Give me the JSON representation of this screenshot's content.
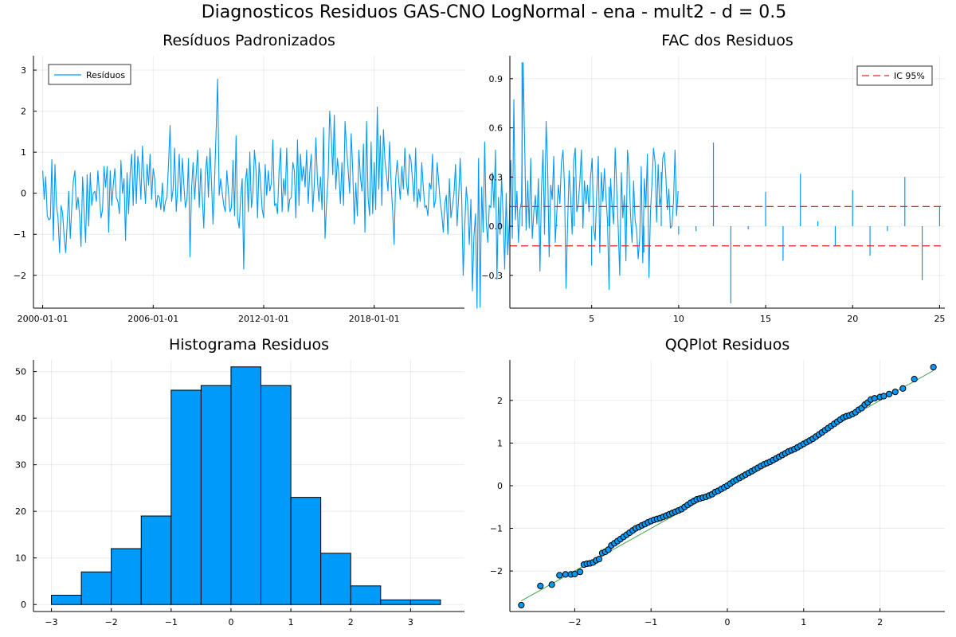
{
  "figure_title": "Diagnosticos Residuos  GAS-CNO LogNormal - ena - mult2 - d = 0.5",
  "colors": {
    "series": "#009AFA",
    "ci": "#E6261F",
    "qqline": "#3DA44D",
    "axis": "#000000"
  },
  "chart_data": [
    {
      "type": "line",
      "title": "Resíduos Padronizados",
      "x_tick_labels": [
        "2000-01-01",
        "2006-01-01",
        "2012-01-01",
        "2018-01-01"
      ],
      "x_tick_years": [
        2000,
        2006,
        2012,
        2018
      ],
      "x_range": [
        1999.5,
        2022.9
      ],
      "ylim": [
        -2.8,
        3.35
      ],
      "y_ticks": [
        -2,
        -1,
        0,
        1,
        2,
        3
      ],
      "legend": {
        "position": "top-left",
        "entries": [
          "Resíduos"
        ]
      },
      "grid": true,
      "series": [
        {
          "name": "Resíduos",
          "x_start": 2000.0,
          "x_step": 0.08333,
          "values": [
            0.55,
            -0.15,
            0.4,
            -0.55,
            -0.65,
            -0.62,
            0.82,
            -1.15,
            0.7,
            -0.3,
            -0.6,
            -1.45,
            -0.3,
            -0.5,
            -1.05,
            -1.45,
            -0.7,
            0.05,
            -1.1,
            -0.3,
            0.3,
            0.55,
            -0.4,
            -0.1,
            -0.5,
            -1.3,
            0.4,
            -0.45,
            -1.2,
            0.45,
            -0.8,
            0.5,
            -0.3,
            0.0,
            0.05,
            -0.2,
            0.55,
            -0.05,
            -0.6,
            -0.4,
            0.65,
            0.15,
            0.65,
            -0.95,
            0.55,
            -0.3,
            0.2,
            0.6,
            -0.1,
            -0.2,
            -0.5,
            0.8,
            0.0,
            0.35,
            -1.15,
            0.5,
            -0.5,
            0.5,
            0.95,
            -0.3,
            1.05,
            -0.25,
            0.9,
            0.6,
            -0.15,
            1.15,
            0.35,
            -0.25,
            0.7,
            0.2,
            0.95,
            -0.15,
            0.6,
            0.35,
            -0.35,
            -0.05,
            -0.1,
            -0.4,
            0.25,
            -0.45,
            -0.2,
            -0.1,
            0.7,
            1.65,
            -0.2,
            0.1,
            1.1,
            -0.45,
            0.15,
            0.95,
            -0.2,
            0.85,
            0.2,
            -0.35,
            -0.15,
            0.85,
            -1.55,
            0.1,
            0.75,
            -0.15,
            0.45,
            1.05,
            -0.35,
            0.6,
            -0.1,
            -0.85,
            0.5,
            0.9,
            -0.1,
            1.1,
            0.25,
            -0.75,
            0.3,
            1.55,
            2.78,
            -0.05,
            0.35,
            0.0,
            -0.3,
            -0.45,
            0.55,
            0.05,
            -0.45,
            -0.35,
            0.8,
            -0.55,
            1.4,
            -0.6,
            -0.85,
            -0.1,
            0.35,
            -1.85,
            0.25,
            0.6,
            -0.45,
            1.0,
            -0.35,
            0.0,
            1.05,
            0.55,
            -0.6,
            0.75,
            0.25,
            -0.4,
            -0.6,
            0.7,
            -0.05,
            0.55,
            0.05,
            0.25,
            1.3,
            -0.3,
            -0.25,
            -0.5,
            0.55,
            1.1,
            -0.45,
            0.35,
            -0.05,
            1.1,
            -0.45,
            -0.15,
            -0.1,
            0.75,
            0.55,
            -0.6,
            1.3,
            -0.3,
            0.95,
            0.3,
            0.65,
            0.15,
            1.05,
            -0.25,
            0.5,
            0.95,
            -0.45,
            0.25,
            1.35,
            0.35,
            -0.2,
            0.4,
            -0.4,
            1.6,
            -1.1,
            -0.2,
            0.4,
            2.0,
            1.4,
            0.45,
            1.9,
            0.1,
            0.85,
            0.45,
            -0.25,
            0.75,
            -0.3,
            1.75,
            1.1,
            0.6,
            0.0,
            1.45,
            0.6,
            -0.75,
            0.25,
            -0.55,
            1.05,
            0.4,
            0.05,
            1.2,
            -0.95,
            1.75,
            -0.1,
            -0.55,
            1.25,
            -0.5,
            0.75,
            -0.4,
            2.1,
            0.1,
            1.4,
            -0.3,
            1.55,
            0.8,
            0.45,
            0.05,
            1.25,
            0.25,
            -0.4,
            -1.25,
            0.35,
            0.8,
            0.3,
            -0.15,
            0.65,
            0.1,
            1.1,
            0.25,
            -0.05,
            0.95,
            0.8,
            0.3,
            -0.2,
            1.1,
            -0.35,
            0.1,
            -0.2,
            0.75,
            0.15,
            -0.35,
            -0.3,
            -0.55,
            0.25,
            0.1,
            0.95,
            -0.35,
            -0.15,
            0.75,
            0.3,
            -0.2,
            -0.5,
            -0.95,
            -0.25,
            -0.05,
            -1.0,
            0.35,
            -0.6,
            -0.3,
            0.0,
            0.7,
            -0.8,
            -0.1,
            0.85,
            -0.05,
            -2.0,
            -0.8,
            0.15,
            -0.3,
            -1.25,
            -0.15,
            -2.38,
            -1.05,
            -0.5,
            -2.8,
            0.85,
            -2.78,
            0.15,
            -0.95,
            1.25,
            -0.7,
            -1.2,
            -0.3,
            -0.35,
            0.5,
            -0.35,
            1.05,
            -2.1,
            -0.1,
            -1.0,
            0.4,
            -0.55,
            -1.85,
            0.0,
            -1.5,
            -0.75,
            0.8,
            -1.1,
            2.28,
            -0.65,
            0.05,
            -1.2,
            -0.4,
            -0.2,
            3.18,
            1.3,
            -0.9,
            0.3,
            -0.85,
            0.85,
            -1.1,
            -0.45,
            -0.05,
            -0.75,
            0.35,
            -1.9,
            0.1,
            1.05,
            -1.0,
            1.75,
            0.65,
            -1.55,
            0.2,
            -0.15,
            0.9,
            -1.2,
            -0.45,
            0.2,
            -0.25,
            0.75,
            1.05,
            0.15,
            -2.32,
            -0.8,
            0.55,
            -0.1,
            -1.0,
            0.8,
            1.1,
            -0.45,
            -0.25,
            0.3,
            1.05,
            -0.85,
            0.3,
            -0.25,
            0.2,
            -0.45,
            0.4,
            0.85,
            -0.85,
            -1.15,
            0.0,
            0.9,
            -1.45,
            0.5,
            -0.2,
            0.6,
            -0.1,
            -0.65,
            -2.35,
            0.35,
            -0.3,
            -0.75,
            1.1,
            0.1,
            -0.85,
            -2.0,
            0.5,
            -0.6,
            -0.05,
            -1.65,
            1.05,
            0.6,
            -0.5,
            -1.2,
            0.3,
            -0.65,
            -0.9,
            -1.6,
            -1.1,
            0.65,
            -1.7,
            0.35,
            -0.35,
            0.95,
            -2.05,
            -0.45,
            0.25,
            1.1,
            0.75,
            -0.7,
            0.7,
            -0.3,
            -0.05,
            0.85,
            1.0,
            0.45,
            -0.4,
            0.1,
            -0.85,
            -0.8,
            -0.2,
            1.05,
            -0.55,
            0.05
          ]
        }
      ]
    },
    {
      "type": "bar",
      "subtype": "acf-stems",
      "title": "FAC dos Residuos",
      "x": [
        1,
        2,
        3,
        4,
        5,
        6,
        7,
        8,
        9,
        10,
        11,
        12,
        13,
        14,
        15,
        16,
        17,
        18,
        19,
        20,
        21,
        22,
        23,
        24,
        25
      ],
      "values": [
        1.0,
        -0.08,
        0.01,
        0.3,
        -0.24,
        0.24,
        0.14,
        -0.16,
        0.33,
        -0.05,
        -0.03,
        0.51,
        -0.47,
        -0.02,
        0.21,
        -0.21,
        0.32,
        0.03,
        -0.12,
        0.22,
        -0.18,
        -0.03,
        0.3,
        -0.33,
        0.12
      ],
      "ci": 0.12,
      "xlim": [
        0.3,
        25.3
      ],
      "ylim": [
        -0.5,
        1.04
      ],
      "x_ticks": [
        5,
        10,
        15,
        20,
        25
      ],
      "y_ticks": [
        -0.3,
        0.0,
        0.3,
        0.6,
        0.9
      ],
      "y_tick_labels": [
        "−0.3",
        "0.0",
        "0.3",
        "0.6",
        "0.9"
      ],
      "legend": {
        "position": "top-right",
        "entries": [
          "IC 95%"
        ]
      },
      "grid": true
    },
    {
      "type": "bar",
      "subtype": "histogram",
      "title": "Histograma Residuos",
      "bin_edges": [
        -3,
        -2.5,
        -2,
        -1.5,
        -1,
        -0.5,
        0,
        0.5,
        1,
        1.5,
        2,
        2.5,
        3,
        3.5
      ],
      "values": [
        2,
        7,
        12,
        19,
        46,
        47,
        51,
        47,
        23,
        11,
        4,
        1,
        1
      ],
      "xlim": [
        -3.3,
        3.9
      ],
      "ylim": [
        -1.5,
        52.5
      ],
      "x_ticks": [
        -3,
        -2,
        -1,
        0,
        1,
        2,
        3
      ],
      "y_ticks": [
        0,
        10,
        20,
        30,
        40,
        50
      ],
      "grid": true
    },
    {
      "type": "scatter",
      "title": "QQPlot Residuos",
      "xlim": [
        -2.85,
        2.85
      ],
      "ylim": [
        -2.95,
        2.95
      ],
      "x_ticks": [
        -2,
        -1,
        0,
        1,
        2
      ],
      "y_ticks": [
        -2,
        -1,
        0,
        1,
        2
      ],
      "reference_line": [
        [
          -2.7,
          -2.7
        ],
        [
          2.7,
          2.7
        ]
      ],
      "grid": true,
      "series": [
        {
          "name": "",
          "x": [
            -2.7,
            -2.45,
            -2.3,
            -2.2,
            -2.12,
            -2.05,
            -2.0,
            -1.93,
            -1.88,
            -1.84,
            -1.8,
            -1.76,
            -1.72,
            -1.68,
            -1.64,
            -1.6,
            -1.56,
            -1.52,
            -1.48,
            -1.44,
            -1.4,
            -1.36,
            -1.32,
            -1.28,
            -1.24,
            -1.2,
            -1.16,
            -1.12,
            -1.08,
            -1.04,
            -1.0,
            -0.96,
            -0.92,
            -0.88,
            -0.84,
            -0.8,
            -0.76,
            -0.72,
            -0.68,
            -0.64,
            -0.6,
            -0.56,
            -0.52,
            -0.48,
            -0.44,
            -0.4,
            -0.36,
            -0.32,
            -0.28,
            -0.24,
            -0.2,
            -0.16,
            -0.12,
            -0.08,
            -0.04,
            0.0,
            0.04,
            0.08,
            0.12,
            0.16,
            0.2,
            0.24,
            0.28,
            0.32,
            0.36,
            0.4,
            0.44,
            0.48,
            0.52,
            0.56,
            0.6,
            0.64,
            0.68,
            0.72,
            0.76,
            0.8,
            0.84,
            0.88,
            0.92,
            0.96,
            1.0,
            1.04,
            1.08,
            1.12,
            1.16,
            1.2,
            1.24,
            1.28,
            1.32,
            1.36,
            1.4,
            1.44,
            1.48,
            1.52,
            1.56,
            1.6,
            1.64,
            1.68,
            1.72,
            1.76,
            1.8,
            1.84,
            1.88,
            1.93,
            2.0,
            2.05,
            2.12,
            2.2,
            2.3,
            2.45,
            2.7
          ],
          "y": [
            -2.8,
            -2.35,
            -2.32,
            -2.1,
            -2.08,
            -2.08,
            -2.07,
            -2.02,
            -1.85,
            -1.83,
            -1.82,
            -1.8,
            -1.75,
            -1.72,
            -1.58,
            -1.55,
            -1.5,
            -1.4,
            -1.35,
            -1.3,
            -1.25,
            -1.2,
            -1.15,
            -1.1,
            -1.05,
            -1.0,
            -0.97,
            -0.93,
            -0.9,
            -0.86,
            -0.83,
            -0.8,
            -0.78,
            -0.76,
            -0.73,
            -0.7,
            -0.67,
            -0.64,
            -0.61,
            -0.58,
            -0.55,
            -0.5,
            -0.45,
            -0.4,
            -0.36,
            -0.32,
            -0.3,
            -0.28,
            -0.26,
            -0.23,
            -0.2,
            -0.15,
            -0.12,
            -0.08,
            -0.04,
            0.0,
            0.05,
            0.1,
            0.14,
            0.18,
            0.22,
            0.26,
            0.3,
            0.34,
            0.38,
            0.42,
            0.46,
            0.5,
            0.53,
            0.56,
            0.6,
            0.64,
            0.68,
            0.72,
            0.76,
            0.8,
            0.83,
            0.86,
            0.9,
            0.94,
            0.98,
            1.02,
            1.06,
            1.1,
            1.15,
            1.2,
            1.25,
            1.3,
            1.35,
            1.4,
            1.45,
            1.5,
            1.55,
            1.6,
            1.63,
            1.65,
            1.68,
            1.72,
            1.78,
            1.82,
            1.9,
            1.95,
            2.02,
            2.05,
            2.08,
            2.1,
            2.15,
            2.2,
            2.28,
            2.5,
            2.78
          ]
        }
      ]
    }
  ]
}
